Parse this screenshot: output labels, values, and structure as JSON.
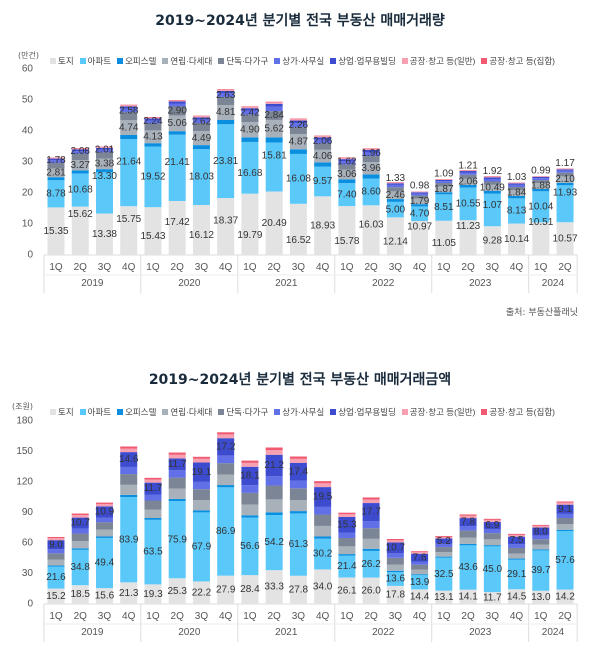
{
  "series_names": [
    "토지",
    "아파트",
    "오피스텔",
    "연립·다세대",
    "단독·다가구",
    "상가·사무실",
    "상업·업무용빌딩",
    "공장·창고 등(일반)",
    "공장·창고 등(집합)"
  ],
  "colors": [
    "#e3e3e3",
    "#5bc8fa",
    "#0a8fe0",
    "#a8b1ba",
    "#7b8596",
    "#6170e6",
    "#3d4ccf",
    "#f6a0b2",
    "#ef5a72"
  ],
  "source": "출처: 부동산플래닛",
  "chart_data": [
    {
      "type": "bar",
      "stacked": true,
      "title": "2019~2024년 분기별 전국 부동산 매매거래량",
      "unit": "(만건)",
      "ylim": [
        0,
        60
      ],
      "yticks": [
        0,
        10,
        20,
        30,
        40,
        50,
        60
      ],
      "categories": [
        "1Q",
        "2Q",
        "3Q",
        "4Q",
        "1Q",
        "2Q",
        "3Q",
        "4Q",
        "1Q",
        "2Q",
        "3Q",
        "4Q",
        "1Q",
        "2Q",
        "3Q",
        "4Q",
        "1Q",
        "2Q",
        "3Q",
        "4Q",
        "1Q",
        "2Q"
      ],
      "years": [
        {
          "label": "2019",
          "count": 4
        },
        {
          "label": "2020",
          "count": 4
        },
        {
          "label": "2021",
          "count": 4
        },
        {
          "label": "2022",
          "count": 4
        },
        {
          "label": "2023",
          "count": 4
        },
        {
          "label": "2024",
          "count": 2
        }
      ],
      "labeled_series": [
        0,
        1,
        3,
        4
      ],
      "series": [
        {
          "name": "토지",
          "values": [
            15.35,
            15.62,
            13.38,
            15.75,
            15.43,
            17.42,
            16.12,
            18.37,
            19.79,
            20.49,
            16.52,
            18.93,
            15.78,
            16.03,
            12.14,
            10.97,
            11.05,
            11.23,
            9.28,
            10.14,
            10.51,
            10.57
          ]
        },
        {
          "name": "아파트",
          "values": [
            8.78,
            10.68,
            13.3,
            21.64,
            19.52,
            21.41,
            18.03,
            23.81,
            16.68,
            15.81,
            16.08,
            9.57,
            7.4,
            8.6,
            5.0,
            4.7,
            8.51,
            10.55,
            10.49,
            8.13,
            10.04,
            11.93
          ]
        },
        {
          "name": "오피스텔",
          "values": [
            0.98,
            1.0,
            1.02,
            1.33,
            1.12,
            1.12,
            1.3,
            1.37,
            1.47,
            1.65,
            1.5,
            1.37,
            1.26,
            1.37,
            0.91,
            0.74,
            0.7,
            0.84,
            0.95,
            0.8,
            0.74,
            0.77
          ]
        },
        {
          "name": "연립·다세대",
          "values": [
            2.81,
            3.27,
            3.38,
            4.74,
            4.13,
            5.06,
            4.49,
            4.81,
            4.9,
            5.62,
            4.87,
            4.06,
            3.06,
            3.96,
            2.46,
            1.79,
            1.87,
            2.06,
            1.92,
            1.84,
            1.88,
            2.1
          ]
        },
        {
          "name": "단독·다가구",
          "values": [
            1.78,
            2.08,
            2.01,
            2.58,
            2.24,
            2.9,
            2.62,
            2.63,
            2.42,
            2.84,
            2.26,
            2.06,
            1.62,
            1.96,
            1.33,
            0.98,
            1.09,
            1.21,
            1.07,
            1.03,
            0.99,
            1.17
          ]
        },
        {
          "name": "상가·사무실",
          "values": [
            0.84,
            0.86,
            0.87,
            1.14,
            0.96,
            0.96,
            1.11,
            1.17,
            1.26,
            1.41,
            1.29,
            1.17,
            1.08,
            1.17,
            0.78,
            0.63,
            0.6,
            0.72,
            0.81,
            0.69,
            0.63,
            0.66
          ]
        },
        {
          "name": "상업·업무용빌딩",
          "values": [
            0.56,
            0.57,
            0.58,
            0.76,
            0.64,
            0.64,
            0.74,
            0.78,
            0.84,
            0.94,
            0.86,
            0.78,
            0.72,
            0.78,
            0.52,
            0.42,
            0.4,
            0.48,
            0.54,
            0.46,
            0.42,
            0.44
          ]
        },
        {
          "name": "공장·창고 등(일반)",
          "values": [
            0.28,
            0.29,
            0.29,
            0.38,
            0.32,
            0.32,
            0.37,
            0.39,
            0.42,
            0.47,
            0.43,
            0.39,
            0.36,
            0.39,
            0.26,
            0.21,
            0.2,
            0.24,
            0.27,
            0.23,
            0.21,
            0.22
          ]
        },
        {
          "name": "공장·창고 등(집합)",
          "values": [
            0.14,
            0.14,
            0.15,
            0.19,
            0.16,
            0.16,
            0.19,
            0.2,
            0.21,
            0.24,
            0.21,
            0.2,
            0.18,
            0.2,
            0.13,
            0.1,
            0.1,
            0.12,
            0.13,
            0.12,
            0.1,
            0.11
          ]
        }
      ]
    },
    {
      "type": "bar",
      "stacked": true,
      "title": "2019~2024년 분기별 전국 부동산 매매거래금액",
      "unit": "(조원)",
      "ylim": [
        0,
        180
      ],
      "yticks": [
        0,
        30,
        60,
        90,
        120,
        150,
        180
      ],
      "categories": [
        "1Q",
        "2Q",
        "3Q",
        "4Q",
        "1Q",
        "2Q",
        "3Q",
        "4Q",
        "1Q",
        "2Q",
        "3Q",
        "4Q",
        "1Q",
        "2Q",
        "3Q",
        "4Q",
        "1Q",
        "2Q",
        "3Q",
        "4Q",
        "1Q",
        "2Q"
      ],
      "years": [
        {
          "label": "2019",
          "count": 4
        },
        {
          "label": "2020",
          "count": 4
        },
        {
          "label": "2021",
          "count": 4
        },
        {
          "label": "2022",
          "count": 4
        },
        {
          "label": "2023",
          "count": 4
        },
        {
          "label": "2024",
          "count": 2
        }
      ],
      "labeled_series": [
        0,
        1,
        6
      ],
      "series": [
        {
          "name": "토지",
          "values": [
            15.2,
            18.5,
            15.6,
            21.3,
            19.3,
            25.3,
            22.2,
            27.9,
            28.4,
            33.3,
            27.8,
            34.0,
            26.1,
            26.0,
            17.8,
            14.4,
            13.1,
            14.1,
            11.7,
            14.5,
            13.0,
            14.2
          ]
        },
        {
          "name": "아파트",
          "values": [
            21.6,
            34.8,
            49.4,
            83.9,
            63.5,
            75.9,
            67.9,
            86.9,
            56.6,
            54.2,
            61.3,
            30.2,
            21.4,
            26.2,
            13.6,
            13.9,
            32.5,
            43.6,
            45.0,
            29.1,
            39.7,
            57.6
          ]
        },
        {
          "name": "오피스텔",
          "values": [
            1.2,
            1.5,
            1.4,
            2.1,
            1.8,
            2.2,
            2.1,
            2.2,
            2.3,
            2.7,
            2.3,
            2.2,
            1.6,
            2.1,
            1.3,
            1.0,
            1.0,
            1.4,
            1.2,
            1.1,
            1.0,
            1.2
          ]
        },
        {
          "name": "연립·다세대",
          "values": [
            5.7,
            7.0,
            6.7,
            9.9,
            8.3,
            10.1,
            10.0,
            10.4,
            10.6,
            12.7,
            10.8,
            10.4,
            7.6,
            9.8,
            6.1,
            4.5,
            4.5,
            6.3,
            5.7,
            5.0,
            4.8,
            5.6
          ]
        },
        {
          "name": "단독·다가구",
          "values": [
            6.1,
            7.5,
            7.2,
            10.6,
            8.9,
            10.8,
            10.7,
            11.1,
            11.4,
            13.6,
            11.6,
            11.2,
            8.2,
            10.5,
            6.6,
            4.8,
            4.9,
            6.8,
            6.1,
            5.4,
            5.2,
            6.0
          ]
        },
        {
          "name": "상가·사무실",
          "values": [
            4.0,
            5.0,
            4.8,
            7.0,
            5.9,
            7.2,
            7.2,
            7.4,
            7.6,
            9.1,
            7.7,
            7.5,
            5.4,
            7.0,
            4.4,
            3.2,
            3.2,
            4.5,
            4.1,
            3.6,
            3.5,
            4.0
          ]
        },
        {
          "name": "상업·업무용빌딩",
          "values": [
            9.0,
            10.7,
            10.9,
            14.6,
            11.7,
            11.7,
            19.1,
            17.2,
            18.1,
            21.2,
            17.4,
            19.5,
            15.3,
            17.7,
            10.7,
            7.6,
            5.2,
            7.8,
            6.9,
            7.5,
            8.0,
            9.1
          ]
        },
        {
          "name": "공장·창고 등(일반)",
          "values": [
            2.0,
            2.5,
            2.4,
            3.5,
            3.0,
            3.6,
            3.6,
            3.7,
            3.8,
            4.5,
            3.9,
            3.7,
            2.7,
            3.5,
            2.2,
            1.6,
            1.6,
            2.3,
            2.0,
            1.8,
            1.7,
            2.0
          ]
        },
        {
          "name": "공장·창고 등(집합)",
          "values": [
            1.2,
            1.5,
            1.4,
            2.1,
            1.8,
            2.2,
            2.1,
            2.2,
            2.3,
            2.7,
            2.3,
            2.2,
            1.6,
            2.1,
            1.3,
            1.0,
            1.0,
            1.4,
            1.2,
            1.1,
            1.0,
            1.2
          ]
        }
      ]
    }
  ]
}
